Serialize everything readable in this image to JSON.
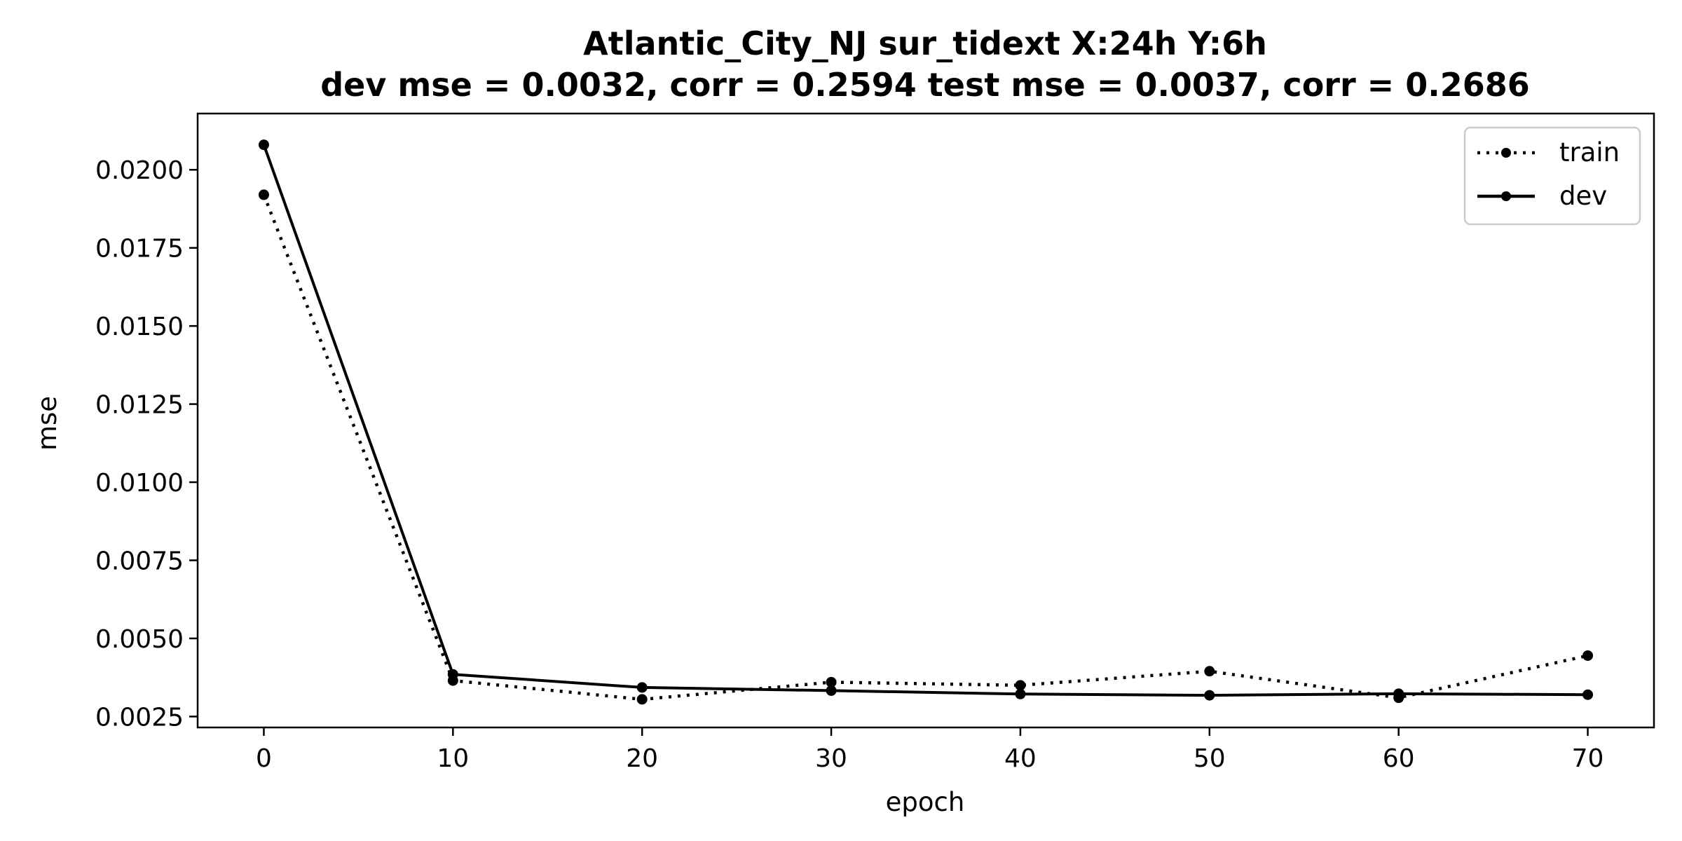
{
  "chart_data": {
    "type": "line",
    "title_line1": "Atlantic_City_NJ   sur_tidext   X:24h   Y:6h",
    "title_line2": "dev mse = 0.0032, corr = 0.2594   test mse = 0.0037, corr = 0.2686",
    "xlabel": "epoch",
    "ylabel": "mse",
    "xlim": [
      -3.5,
      73.5
    ],
    "ylim": [
      0.00215,
      0.0218
    ],
    "x_ticks": [
      0,
      10,
      20,
      30,
      40,
      50,
      60,
      70
    ],
    "y_ticks": [
      0.0025,
      0.005,
      0.0075,
      0.01,
      0.0125,
      0.015,
      0.0175,
      0.02
    ],
    "y_tick_labels": [
      "0.0025",
      "0.0050",
      "0.0075",
      "0.0100",
      "0.0125",
      "0.0150",
      "0.0175",
      "0.0200"
    ],
    "x": [
      0,
      10,
      20,
      30,
      40,
      50,
      60,
      70
    ],
    "series": [
      {
        "name": "train",
        "style": "dotted",
        "color": "#000000",
        "values": [
          0.0192,
          0.00365,
          0.00305,
          0.0036,
          0.0035,
          0.00395,
          0.0031,
          0.00445
        ]
      },
      {
        "name": "dev",
        "style": "solid",
        "color": "#000000",
        "values": [
          0.0208,
          0.00385,
          0.00343,
          0.00333,
          0.00322,
          0.00318,
          0.00323,
          0.0032
        ]
      }
    ],
    "legend_position": "top-right",
    "grid": false
  }
}
